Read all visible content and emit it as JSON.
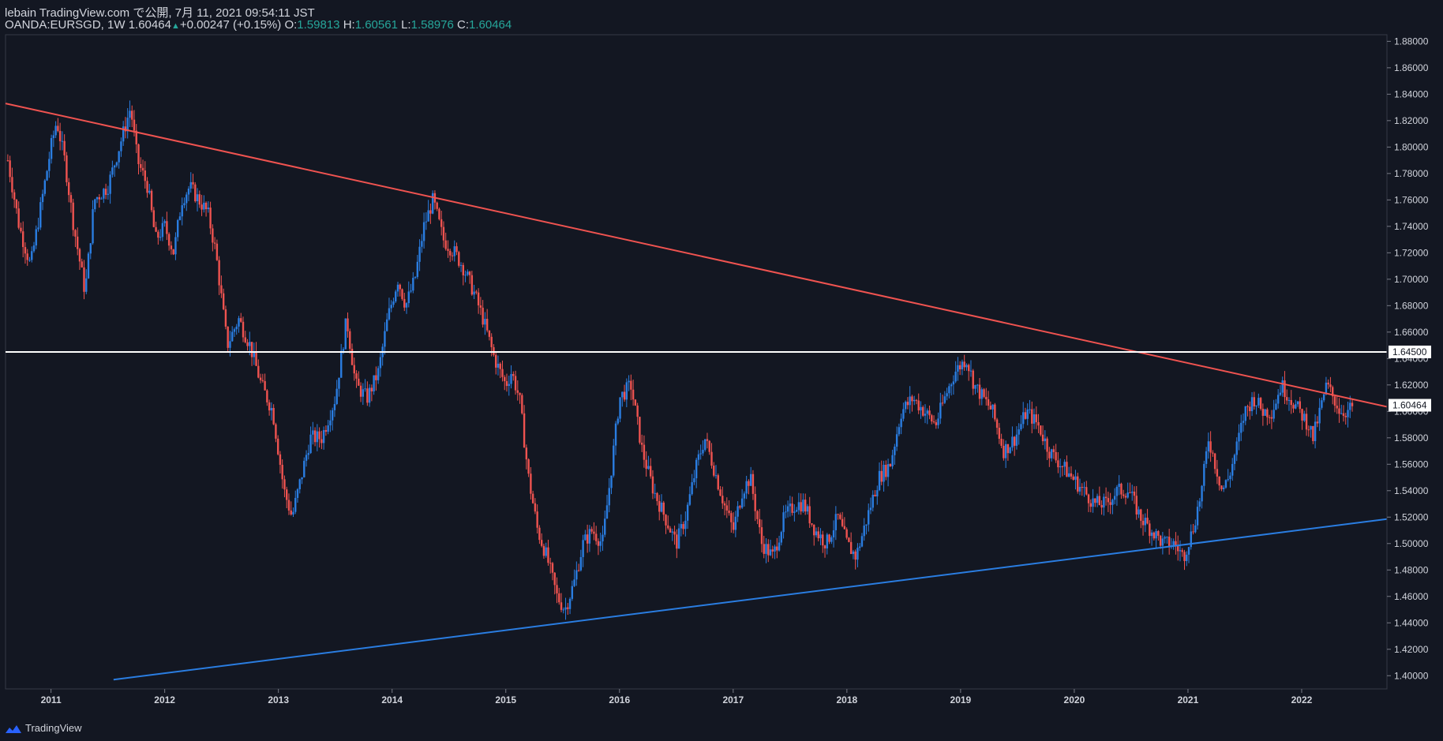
{
  "header": {
    "publisher": "lebain TradingView.com で公開, 7月 11, 2021 09:54:11 JST",
    "symbol": "OANDA:EURSGD, 1W",
    "last": "1.60464",
    "change": "+0.00247 (+0.15%)",
    "o_label": "O:",
    "o_value": "1.59813",
    "h_label": "H:",
    "h_value": "1.60561",
    "l_label": "L:",
    "l_value": "1.58976",
    "c_label": "C:",
    "c_value": "1.60464"
  },
  "footer": {
    "brand": "TradingView",
    "logo_icon": "tradingview-logo-icon"
  },
  "colors": {
    "background": "#131722",
    "up": "#2a7de1",
    "down": "#ef5350",
    "resistance": "#ef5350",
    "support": "#2a7de1",
    "level": "#ffffff"
  },
  "chart_data": {
    "type": "candlestick",
    "symbol": "OANDA:EURSGD",
    "timeframe": "1W",
    "xlim": [
      2010.6,
      2022.75
    ],
    "ylim": [
      1.39,
      1.885
    ],
    "x_ticks": [
      "2011",
      "2012",
      "2013",
      "2014",
      "2015",
      "2016",
      "2017",
      "2018",
      "2019",
      "2020",
      "2021",
      "2022"
    ],
    "y_ticks": [
      "1.40000",
      "1.42000",
      "1.44000",
      "1.46000",
      "1.48000",
      "1.50000",
      "1.52000",
      "1.54000",
      "1.56000",
      "1.58000",
      "1.60000",
      "1.62000",
      "1.64000",
      "1.66000",
      "1.68000",
      "1.70000",
      "1.72000",
      "1.74000",
      "1.76000",
      "1.78000",
      "1.80000",
      "1.82000",
      "1.84000",
      "1.86000",
      "1.88000"
    ],
    "price_labels": [
      {
        "name": "horizontal-level",
        "text": "1.64500",
        "value": 1.645
      },
      {
        "name": "last-price",
        "text": "1.60464",
        "value": 1.60464
      }
    ],
    "drawings": [
      {
        "name": "resistance-trendline",
        "color": "#ef5350",
        "from": [
          2010.6,
          1.833
        ],
        "to": [
          2022.75,
          1.6035
        ]
      },
      {
        "name": "support-trendline",
        "color": "#2a7de1",
        "from": [
          2011.55,
          1.397
        ],
        "to": [
          2022.75,
          1.5185
        ]
      },
      {
        "name": "horizontal-level-line",
        "color": "#ffffff",
        "value": 1.645
      }
    ],
    "close_path": [
      [
        2010.62,
        1.79
      ],
      [
        2010.72,
        1.74
      ],
      [
        2010.82,
        1.71
      ],
      [
        2010.9,
        1.75
      ],
      [
        2011.0,
        1.8
      ],
      [
        2011.05,
        1.82
      ],
      [
        2011.12,
        1.79
      ],
      [
        2011.2,
        1.74
      ],
      [
        2011.3,
        1.69
      ],
      [
        2011.38,
        1.76
      ],
      [
        2011.5,
        1.77
      ],
      [
        2011.6,
        1.8
      ],
      [
        2011.7,
        1.83
      ],
      [
        2011.76,
        1.79
      ],
      [
        2011.85,
        1.77
      ],
      [
        2011.92,
        1.73
      ],
      [
        2012.0,
        1.74
      ],
      [
        2012.08,
        1.72
      ],
      [
        2012.15,
        1.76
      ],
      [
        2012.22,
        1.77
      ],
      [
        2012.3,
        1.76
      ],
      [
        2012.38,
        1.75
      ],
      [
        2012.45,
        1.72
      ],
      [
        2012.55,
        1.65
      ],
      [
        2012.65,
        1.67
      ],
      [
        2012.75,
        1.65
      ],
      [
        2012.85,
        1.62
      ],
      [
        2012.95,
        1.6
      ],
      [
        2013.05,
        1.54
      ],
      [
        2013.12,
        1.52
      ],
      [
        2013.2,
        1.55
      ],
      [
        2013.28,
        1.58
      ],
      [
        2013.38,
        1.58
      ],
      [
        2013.5,
        1.61
      ],
      [
        2013.6,
        1.67
      ],
      [
        2013.68,
        1.62
      ],
      [
        2013.78,
        1.61
      ],
      [
        2013.88,
        1.63
      ],
      [
        2013.96,
        1.67
      ],
      [
        2014.05,
        1.7
      ],
      [
        2014.12,
        1.68
      ],
      [
        2014.2,
        1.7
      ],
      [
        2014.28,
        1.74
      ],
      [
        2014.36,
        1.76
      ],
      [
        2014.45,
        1.73
      ],
      [
        2014.55,
        1.72
      ],
      [
        2014.62,
        1.71
      ],
      [
        2014.72,
        1.69
      ],
      [
        2014.8,
        1.67
      ],
      [
        2014.9,
        1.64
      ],
      [
        2015.0,
        1.62
      ],
      [
        2015.05,
        1.63
      ],
      [
        2015.12,
        1.61
      ],
      [
        2015.2,
        1.55
      ],
      [
        2015.28,
        1.51
      ],
      [
        2015.36,
        1.49
      ],
      [
        2015.45,
        1.46
      ],
      [
        2015.52,
        1.45
      ],
      [
        2015.6,
        1.47
      ],
      [
        2015.68,
        1.5
      ],
      [
        2015.76,
        1.51
      ],
      [
        2015.85,
        1.5
      ],
      [
        2015.92,
        1.55
      ],
      [
        2016.0,
        1.61
      ],
      [
        2016.1,
        1.62
      ],
      [
        2016.2,
        1.57
      ],
      [
        2016.3,
        1.54
      ],
      [
        2016.4,
        1.52
      ],
      [
        2016.5,
        1.5
      ],
      [
        2016.58,
        1.52
      ],
      [
        2016.68,
        1.56
      ],
      [
        2016.75,
        1.58
      ],
      [
        2016.82,
        1.56
      ],
      [
        2016.92,
        1.53
      ],
      [
        2017.0,
        1.51
      ],
      [
        2017.08,
        1.54
      ],
      [
        2017.15,
        1.55
      ],
      [
        2017.25,
        1.5
      ],
      [
        2017.35,
        1.49
      ],
      [
        2017.45,
        1.52
      ],
      [
        2017.55,
        1.53
      ],
      [
        2017.62,
        1.53
      ],
      [
        2017.72,
        1.51
      ],
      [
        2017.82,
        1.5
      ],
      [
        2017.92,
        1.52
      ],
      [
        2018.0,
        1.5
      ],
      [
        2018.08,
        1.49
      ],
      [
        2018.18,
        1.52
      ],
      [
        2018.28,
        1.55
      ],
      [
        2018.38,
        1.56
      ],
      [
        2018.48,
        1.6
      ],
      [
        2018.58,
        1.61
      ],
      [
        2018.68,
        1.6
      ],
      [
        2018.78,
        1.59
      ],
      [
        2018.86,
        1.61
      ],
      [
        2018.95,
        1.63
      ],
      [
        2019.05,
        1.64
      ],
      [
        2019.12,
        1.62
      ],
      [
        2019.2,
        1.61
      ],
      [
        2019.28,
        1.6
      ],
      [
        2019.38,
        1.57
      ],
      [
        2019.48,
        1.58
      ],
      [
        2019.58,
        1.6
      ],
      [
        2019.68,
        1.59
      ],
      [
        2019.78,
        1.57
      ],
      [
        2019.88,
        1.56
      ],
      [
        2019.98,
        1.55
      ],
      [
        2020.08,
        1.54
      ],
      [
        2020.18,
        1.53
      ],
      [
        2020.28,
        1.53
      ],
      [
        2020.38,
        1.54
      ],
      [
        2020.48,
        1.54
      ],
      [
        2020.58,
        1.52
      ],
      [
        2020.68,
        1.51
      ],
      [
        2020.78,
        1.5
      ],
      [
        2020.88,
        1.5
      ],
      [
        2020.96,
        1.49
      ],
      [
        2021.04,
        1.51
      ],
      [
        2021.12,
        1.54
      ],
      [
        2021.18,
        1.58
      ],
      [
        2021.24,
        1.56
      ],
      [
        2021.3,
        1.54
      ],
      [
        2021.36,
        1.55
      ],
      [
        2021.42,
        1.57
      ],
      [
        2021.5,
        1.6
      ],
      [
        2021.58,
        1.61
      ],
      [
        2021.66,
        1.6
      ],
      [
        2021.74,
        1.6
      ],
      [
        2021.82,
        1.62
      ],
      [
        2021.9,
        1.61
      ],
      [
        2021.98,
        1.6
      ],
      [
        2022.06,
        1.59
      ],
      [
        2022.1,
        1.58
      ],
      [
        2022.16,
        1.6
      ],
      [
        2022.22,
        1.62
      ],
      [
        2022.28,
        1.61
      ],
      [
        2022.34,
        1.6
      ],
      [
        2022.4,
        1.6
      ],
      [
        2022.46,
        1.6046
      ]
    ]
  }
}
